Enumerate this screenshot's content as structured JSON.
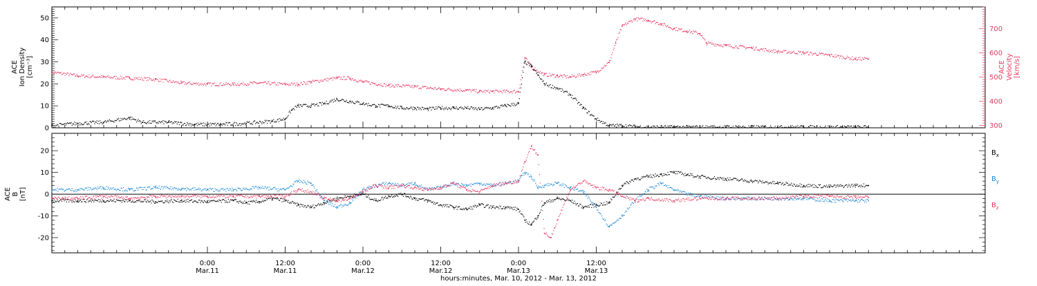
{
  "chart_data": [
    {
      "type": "scatter",
      "panel": "plasma",
      "ylabel_lines": [
        "ACE",
        "Ion Density",
        "[cm⁻³]"
      ],
      "y2label_lines": [
        "ACE",
        "Velocity",
        "[km/s]"
      ],
      "ylim": [
        0,
        55
      ],
      "y_ticks": [
        "0",
        "10",
        "20",
        "30",
        "40",
        "50"
      ],
      "y2lim": [
        290,
        790
      ],
      "y2_ticks": [
        "300",
        "400",
        "500",
        "600",
        "700"
      ],
      "series": [
        {
          "name": "Ion Density",
          "axis": "left",
          "color": "#000000",
          "points": [
            [
              0,
              1
            ],
            [
              4,
              2
            ],
            [
              8,
              2.5
            ],
            [
              12,
              4.5
            ],
            [
              14,
              2.5
            ],
            [
              18,
              2.5
            ],
            [
              22,
              1.5
            ],
            [
              26,
              1.5
            ],
            [
              30,
              2
            ],
            [
              34,
              3
            ],
            [
              36,
              4
            ],
            [
              37,
              8
            ],
            [
              38,
              10
            ],
            [
              40,
              10
            ],
            [
              42,
              11
            ],
            [
              44,
              13
            ],
            [
              46,
              12
            ],
            [
              48,
              11
            ],
            [
              50,
              10
            ],
            [
              52,
              10
            ],
            [
              54,
              9
            ],
            [
              56,
              9
            ],
            [
              58,
              8.5
            ],
            [
              60,
              9
            ],
            [
              62,
              9
            ],
            [
              64,
              9
            ],
            [
              66,
              8.5
            ],
            [
              68,
              9
            ],
            [
              70,
              10
            ],
            [
              72,
              11
            ],
            [
              73,
              30
            ],
            [
              74,
              28
            ],
            [
              75,
              24
            ],
            [
              76,
              20
            ],
            [
              78,
              18
            ],
            [
              80,
              15
            ],
            [
              82,
              9
            ],
            [
              84,
              4
            ],
            [
              86,
              1
            ],
            [
              88,
              1
            ],
            [
              90,
              0.5
            ],
            [
              92,
              0.3
            ],
            [
              96,
              0.3
            ],
            [
              100,
              0.3
            ],
            [
              104,
              0.3
            ],
            [
              108,
              0.3
            ],
            [
              112,
              0.3
            ],
            [
              116,
              0.3
            ],
            [
              120,
              0.3
            ],
            [
              124,
              0.3
            ],
            [
              126,
              0.3
            ]
          ]
        },
        {
          "name": "Velocity",
          "axis": "right",
          "color": "#e8375f",
          "points": [
            [
              0,
              520
            ],
            [
              4,
              505
            ],
            [
              8,
              500
            ],
            [
              12,
              495
            ],
            [
              16,
              490
            ],
            [
              20,
              475
            ],
            [
              24,
              470
            ],
            [
              28,
              470
            ],
            [
              32,
              475
            ],
            [
              36,
              470
            ],
            [
              38,
              470
            ],
            [
              40,
              480
            ],
            [
              44,
              495
            ],
            [
              46,
              495
            ],
            [
              48,
              480
            ],
            [
              52,
              465
            ],
            [
              56,
              460
            ],
            [
              60,
              450
            ],
            [
              64,
              445
            ],
            [
              66,
              440
            ],
            [
              68,
              440
            ],
            [
              72,
              440
            ],
            [
              73,
              580
            ],
            [
              74,
              540
            ],
            [
              76,
              510
            ],
            [
              78,
              505
            ],
            [
              80,
              500
            ],
            [
              82,
              510
            ],
            [
              84,
              520
            ],
            [
              86,
              560
            ],
            [
              87,
              640
            ],
            [
              88,
              710
            ],
            [
              90,
              740
            ],
            [
              92,
              735
            ],
            [
              94,
              720
            ],
            [
              96,
              700
            ],
            [
              98,
              690
            ],
            [
              100,
              680
            ],
            [
              101,
              640
            ],
            [
              104,
              630
            ],
            [
              108,
              620
            ],
            [
              112,
              605
            ],
            [
              116,
              600
            ],
            [
              120,
              590
            ],
            [
              124,
              575
            ],
            [
              126,
              575
            ]
          ]
        }
      ]
    },
    {
      "type": "scatter",
      "panel": "magnetic-field",
      "ylabel_lines": [
        "ACE",
        "B",
        "[nT]"
      ],
      "ylim": [
        -27,
        28
      ],
      "y_ticks": [
        "-20",
        "-10",
        "0",
        "10",
        "20"
      ],
      "zero_line": true,
      "series": [
        {
          "name": "Bx",
          "legend_main": "B",
          "legend_sub": "x",
          "color": "#000000",
          "points": [
            [
              0,
              -3
            ],
            [
              4,
              -3
            ],
            [
              8,
              -3
            ],
            [
              12,
              -3
            ],
            [
              16,
              -3.5
            ],
            [
              20,
              -3
            ],
            [
              24,
              -3.5
            ],
            [
              28,
              -3
            ],
            [
              30,
              -4
            ],
            [
              32,
              -3.5
            ],
            [
              34,
              -2
            ],
            [
              36,
              -3
            ],
            [
              38,
              -5
            ],
            [
              40,
              -6
            ],
            [
              42,
              -4
            ],
            [
              44,
              -2
            ],
            [
              46,
              -1
            ],
            [
              48,
              0
            ],
            [
              50,
              -3
            ],
            [
              52,
              -1
            ],
            [
              54,
              0
            ],
            [
              56,
              -2
            ],
            [
              58,
              -3
            ],
            [
              60,
              -5
            ],
            [
              62,
              -6
            ],
            [
              64,
              -7
            ],
            [
              66,
              -5
            ],
            [
              68,
              -6
            ],
            [
              70,
              -6
            ],
            [
              72,
              -7
            ],
            [
              73,
              -12
            ],
            [
              74,
              -14
            ],
            [
              75,
              -10
            ],
            [
              76,
              -4
            ],
            [
              78,
              -2
            ],
            [
              80,
              -3
            ],
            [
              82,
              -6
            ],
            [
              84,
              -5
            ],
            [
              86,
              -4
            ],
            [
              88,
              4
            ],
            [
              90,
              7
            ],
            [
              92,
              8
            ],
            [
              94,
              9
            ],
            [
              96,
              10
            ],
            [
              98,
              9
            ],
            [
              100,
              8
            ],
            [
              104,
              7
            ],
            [
              108,
              6
            ],
            [
              112,
              5
            ],
            [
              116,
              4
            ],
            [
              120,
              3.5
            ],
            [
              124,
              4
            ],
            [
              126,
              4
            ]
          ]
        },
        {
          "name": "By",
          "legend_main": "B",
          "legend_sub": "y",
          "color": "#1e88d8",
          "points": [
            [
              0,
              2
            ],
            [
              4,
              2
            ],
            [
              8,
              3
            ],
            [
              12,
              2
            ],
            [
              16,
              3
            ],
            [
              20,
              2.5
            ],
            [
              24,
              2
            ],
            [
              28,
              2
            ],
            [
              32,
              3
            ],
            [
              36,
              2
            ],
            [
              38,
              6
            ],
            [
              40,
              5
            ],
            [
              42,
              -3
            ],
            [
              44,
              -6
            ],
            [
              46,
              -4
            ],
            [
              48,
              2
            ],
            [
              50,
              4
            ],
            [
              52,
              5
            ],
            [
              54,
              4
            ],
            [
              56,
              5
            ],
            [
              58,
              2
            ],
            [
              60,
              3
            ],
            [
              62,
              5
            ],
            [
              64,
              4
            ],
            [
              66,
              5
            ],
            [
              68,
              4
            ],
            [
              70,
              5
            ],
            [
              72,
              6
            ],
            [
              73,
              10
            ],
            [
              74,
              8
            ],
            [
              75,
              3
            ],
            [
              76,
              4
            ],
            [
              78,
              5
            ],
            [
              80,
              3
            ],
            [
              82,
              1
            ],
            [
              84,
              -6
            ],
            [
              86,
              -15
            ],
            [
              88,
              -10
            ],
            [
              90,
              -3
            ],
            [
              92,
              2
            ],
            [
              94,
              5
            ],
            [
              96,
              2
            ],
            [
              98,
              0
            ],
            [
              100,
              -1
            ],
            [
              104,
              -2
            ],
            [
              108,
              -2
            ],
            [
              112,
              -2
            ],
            [
              116,
              -2
            ],
            [
              120,
              -3
            ],
            [
              124,
              -3
            ],
            [
              126,
              -3
            ]
          ]
        },
        {
          "name": "Bz",
          "legend_main": "B",
          "legend_sub": "z",
          "color": "#e8375f",
          "points": [
            [
              0,
              -2
            ],
            [
              4,
              -2
            ],
            [
              8,
              -1
            ],
            [
              12,
              -2
            ],
            [
              16,
              -1
            ],
            [
              20,
              -1
            ],
            [
              24,
              -1
            ],
            [
              28,
              -1
            ],
            [
              32,
              -1
            ],
            [
              36,
              -1
            ],
            [
              38,
              2
            ],
            [
              40,
              1
            ],
            [
              42,
              -2
            ],
            [
              44,
              -3
            ],
            [
              46,
              -2
            ],
            [
              48,
              1
            ],
            [
              50,
              4
            ],
            [
              52,
              3
            ],
            [
              54,
              4
            ],
            [
              56,
              3
            ],
            [
              58,
              2
            ],
            [
              60,
              3
            ],
            [
              62,
              5
            ],
            [
              64,
              2
            ],
            [
              66,
              1
            ],
            [
              68,
              4
            ],
            [
              70,
              5
            ],
            [
              72,
              6
            ],
            [
              73,
              15
            ],
            [
              74,
              22
            ],
            [
              75,
              18
            ],
            [
              76,
              -18
            ],
            [
              77,
              -20
            ],
            [
              78,
              -12
            ],
            [
              80,
              2
            ],
            [
              82,
              6
            ],
            [
              84,
              3
            ],
            [
              86,
              2
            ],
            [
              88,
              -1
            ],
            [
              90,
              -3
            ],
            [
              92,
              -2
            ],
            [
              96,
              -3
            ],
            [
              100,
              -2
            ],
            [
              104,
              -2
            ],
            [
              108,
              -2
            ],
            [
              112,
              -2
            ],
            [
              116,
              -1
            ],
            [
              120,
              -1
            ],
            [
              124,
              -1.5
            ],
            [
              126,
              -1.5
            ]
          ]
        }
      ]
    }
  ],
  "x_axis": {
    "range_hours": [
      0,
      144
    ],
    "ticks": [
      {
        "hour": 24,
        "time": "0:00",
        "date": "Mar.11"
      },
      {
        "hour": 36,
        "time": "12:00",
        "date": "Mar.11"
      },
      {
        "hour": 48,
        "time": "0:00",
        "date": "Mar.12"
      },
      {
        "hour": 60,
        "time": "12:00",
        "date": "Mar.12"
      },
      {
        "hour": 72,
        "time": "0:00",
        "date": "Mar.13"
      },
      {
        "hour": 84,
        "time": "12:00",
        "date": "Mar.13"
      }
    ],
    "label": "hours:minutes, Mar. 10, 2012 - Mar. 13, 2012"
  }
}
